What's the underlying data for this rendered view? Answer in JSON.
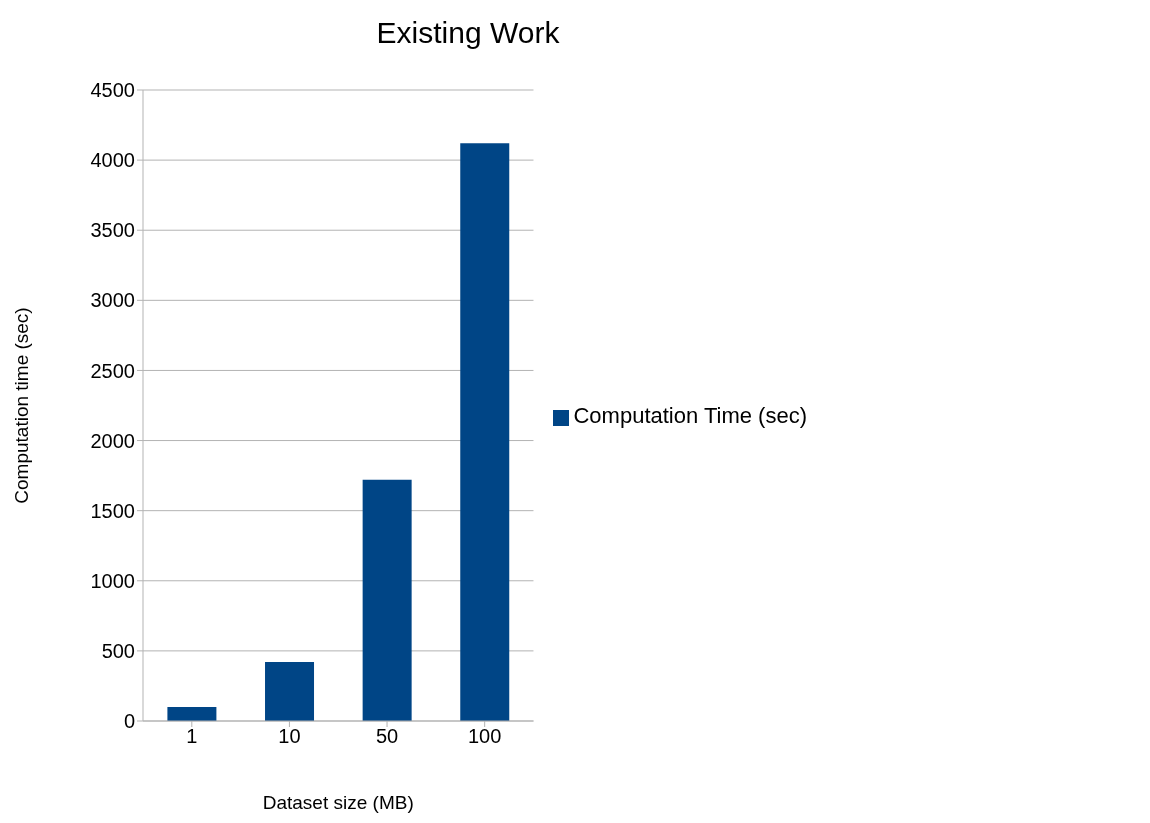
{
  "chart_data": {
    "type": "bar",
    "title": "Existing Work",
    "xlabel": "Dataset size (MB)",
    "ylabel": "Computation time (sec)",
    "categories": [
      "1",
      "10",
      "50",
      "100"
    ],
    "series": [
      {
        "name": "Computation Time (sec)",
        "color": "#004586",
        "values": [
          100,
          420,
          1720,
          4120
        ]
      }
    ],
    "ylim": [
      0,
      4500
    ],
    "yticks": [
      0,
      500,
      1000,
      1500,
      2000,
      2500,
      3000,
      3500,
      4000,
      4500
    ],
    "grid": "y",
    "legend": "right"
  }
}
